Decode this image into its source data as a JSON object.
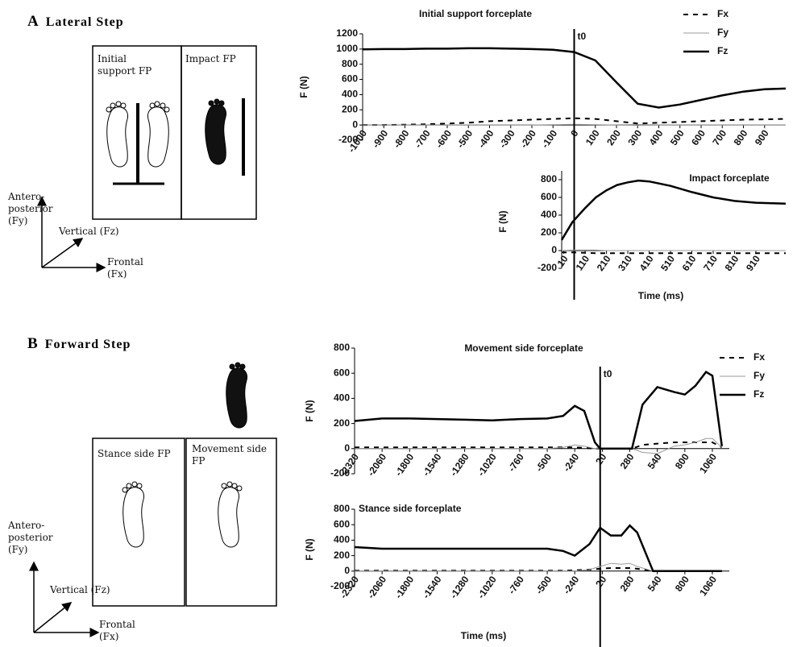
{
  "panels": [
    {
      "label": "A",
      "title": "Lateral Step",
      "boxes": [
        "Initial support FP",
        "Impact FP"
      ],
      "axes": {
        "up": "Antero-posterior (Fy)",
        "diagonal": "Vertical (Fz)",
        "right": "Frontal (Fx)"
      }
    },
    {
      "label": "B",
      "title": "Forward Step",
      "boxes": [
        "Stance side FP",
        "Movement side FP"
      ],
      "axes": {
        "up": "Antero-posterior (Fy)",
        "diagonal": "Vertical (Fz)",
        "right": "Frontal (Fx)"
      }
    }
  ],
  "chart_data": [
    {
      "type": "line",
      "title": "Initial support forceplate",
      "y_label": "F (N)",
      "x": [
        -1000,
        -900,
        -800,
        -700,
        -600,
        -500,
        -400,
        -300,
        -200,
        -100,
        0,
        100,
        200,
        300,
        400,
        500,
        600,
        700,
        800,
        900,
        1000
      ],
      "xlim": [
        -1000,
        1000
      ],
      "xticks": [
        -1000,
        -900,
        -800,
        -700,
        -600,
        -500,
        -400,
        -300,
        -200,
        -100,
        0,
        100,
        200,
        300,
        400,
        500,
        600,
        700,
        800,
        900
      ],
      "ylim": [
        -200,
        1200
      ],
      "yticks": [
        -200,
        0,
        200,
        400,
        600,
        800,
        1000,
        1200
      ],
      "legend": "upper right",
      "annotation": {
        "text": "t0",
        "x": 0
      },
      "series": [
        {
          "name": "Fx",
          "color": "#000000",
          "dash": true,
          "line_width": 2,
          "values": [
            0,
            0,
            5,
            10,
            20,
            30,
            50,
            60,
            70,
            80,
            90,
            80,
            50,
            20,
            30,
            40,
            50,
            60,
            70,
            75,
            80
          ]
        },
        {
          "name": "Fy",
          "color": "#999999",
          "dash": false,
          "line_width": 1,
          "values": [
            0,
            0,
            0,
            0,
            0,
            0,
            0,
            0,
            0,
            5,
            10,
            5,
            0,
            -5,
            0,
            0,
            0,
            0,
            0,
            0,
            0
          ]
        },
        {
          "name": "Fz",
          "color": "#000000",
          "dash": false,
          "line_width": 2.5,
          "values": [
            995,
            1000,
            1000,
            1005,
            1005,
            1010,
            1010,
            1005,
            1000,
            990,
            960,
            850,
            560,
            280,
            230,
            270,
            330,
            390,
            440,
            470,
            480
          ]
        }
      ]
    },
    {
      "type": "line",
      "title": "Impact forceplate",
      "y_label": "F (N)",
      "x_label": "Time (ms)",
      "x": [
        0,
        50,
        110,
        160,
        210,
        260,
        310,
        360,
        410,
        510,
        610,
        710,
        810,
        910,
        1050
      ],
      "xlim": [
        0,
        1050
      ],
      "xticks": [
        10,
        110,
        210,
        310,
        410,
        510,
        610,
        710,
        810,
        910
      ],
      "ylim": [
        -200,
        900
      ],
      "yticks": [
        -200,
        0,
        200,
        400,
        600,
        800
      ],
      "legend": false,
      "series": [
        {
          "name": "Fx",
          "color": "#000000",
          "dash": true,
          "line_width": 2,
          "values": [
            -20,
            -20,
            -25,
            -30,
            -30,
            -30,
            -30,
            -30,
            -30,
            -30,
            -30,
            -30,
            -30,
            -30,
            -30
          ]
        },
        {
          "name": "Fy",
          "color": "#999999",
          "dash": false,
          "line_width": 1,
          "values": [
            0,
            5,
            5,
            5,
            0,
            0,
            0,
            0,
            0,
            0,
            0,
            0,
            0,
            0,
            0
          ]
        },
        {
          "name": "Fz",
          "color": "#000000",
          "dash": false,
          "line_width": 2.5,
          "values": [
            120,
            320,
            480,
            600,
            680,
            740,
            770,
            790,
            780,
            730,
            660,
            600,
            560,
            540,
            530
          ]
        }
      ]
    },
    {
      "type": "line",
      "title": "Movement side forceplate",
      "y_label": "F (N)",
      "x": [
        -2320,
        -2060,
        -1800,
        -1540,
        -1280,
        -1020,
        -760,
        -500,
        -350,
        -240,
        -150,
        -50,
        0,
        300,
        400,
        540,
        700,
        800,
        900,
        1000,
        1060,
        1150
      ],
      "xlim": [
        -2320,
        1220
      ],
      "xticks": [
        -2320,
        -2060,
        -1800,
        -1540,
        -1280,
        -1020,
        -760,
        -500,
        -240,
        20,
        280,
        540,
        800,
        1060
      ],
      "ylim": [
        -200,
        800
      ],
      "yticks": [
        -200,
        0,
        200,
        400,
        600,
        800
      ],
      "legend": "upper right",
      "annotation": {
        "text": "t0",
        "x": 0
      },
      "series": [
        {
          "name": "Fx",
          "color": "#000000",
          "dash": true,
          "line_width": 2,
          "values": [
            10,
            10,
            10,
            10,
            10,
            10,
            10,
            10,
            10,
            10,
            5,
            0,
            0,
            0,
            30,
            40,
            50,
            50,
            50,
            50,
            50,
            10
          ]
        },
        {
          "name": "Fy",
          "color": "#999999",
          "dash": false,
          "line_width": 1,
          "values": [
            0,
            0,
            0,
            0,
            0,
            0,
            0,
            0,
            10,
            30,
            20,
            0,
            0,
            0,
            -30,
            -40,
            20,
            30,
            50,
            80,
            80,
            10
          ]
        },
        {
          "name": "Fz",
          "color": "#000000",
          "dash": false,
          "line_width": 2.5,
          "values": [
            220,
            240,
            240,
            235,
            230,
            225,
            235,
            240,
            260,
            340,
            300,
            50,
            0,
            0,
            350,
            490,
            450,
            430,
            500,
            610,
            580,
            20
          ]
        }
      ]
    },
    {
      "type": "line",
      "title": "Stance side forceplate",
      "y_label": "F (N)",
      "x_label": "Time (ms)",
      "x": [
        -2320,
        -2060,
        -1800,
        -1540,
        -1280,
        -1020,
        -760,
        -500,
        -350,
        -240,
        -100,
        0,
        100,
        200,
        280,
        350,
        500,
        540,
        800,
        1060,
        1150
      ],
      "xlim": [
        -2320,
        1220
      ],
      "xticks": [
        -2320,
        -2060,
        -1800,
        -1540,
        -1280,
        -1020,
        -760,
        -500,
        -240,
        20,
        280,
        540,
        800,
        1060
      ],
      "ylim": [
        -200,
        800
      ],
      "yticks": [
        -200,
        0,
        200,
        400,
        600,
        800
      ],
      "legend": false,
      "series": [
        {
          "name": "Fx",
          "color": "#000000",
          "dash": true,
          "line_width": 2,
          "values": [
            5,
            5,
            5,
            5,
            5,
            5,
            5,
            5,
            5,
            10,
            20,
            30,
            40,
            40,
            40,
            30,
            0,
            0,
            0,
            0,
            0
          ]
        },
        {
          "name": "Fy",
          "color": "#999999",
          "dash": false,
          "line_width": 1,
          "values": [
            0,
            0,
            0,
            0,
            0,
            0,
            0,
            0,
            0,
            0,
            20,
            60,
            100,
            90,
            100,
            60,
            0,
            0,
            0,
            0,
            0
          ]
        },
        {
          "name": "Fz",
          "color": "#000000",
          "dash": false,
          "line_width": 2.5,
          "values": [
            310,
            290,
            290,
            290,
            290,
            290,
            290,
            290,
            260,
            200,
            350,
            560,
            460,
            460,
            590,
            500,
            0,
            0,
            0,
            0,
            0
          ]
        }
      ]
    }
  ]
}
